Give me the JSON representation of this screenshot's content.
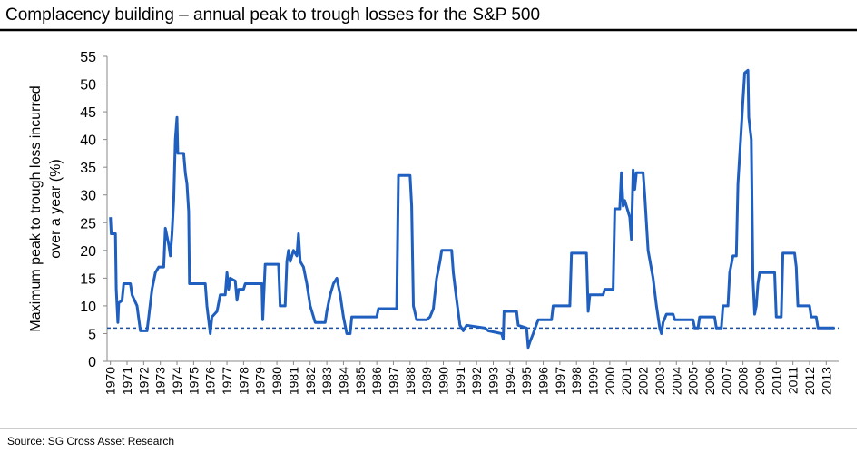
{
  "chart_data": {
    "type": "line",
    "title": "Complacency building – annual peak to trough losses for the S&P 500",
    "ylabel": [
      "Maximum peak to trough loss incurred",
      "over a year (%)"
    ],
    "source": "Source: SG Cross Asset Research",
    "color": "#1f5fbf",
    "reference_line": 6,
    "reference_color": "#1f4f9f",
    "xlim": [
      1969.8,
      2013.8
    ],
    "ylim": [
      0,
      55
    ],
    "yticks": [
      0,
      5,
      10,
      15,
      20,
      25,
      30,
      35,
      40,
      45,
      50,
      55
    ],
    "xticks": [
      1970,
      1971,
      1972,
      1973,
      1974,
      1975,
      1976,
      1977,
      1978,
      1979,
      1980,
      1981,
      1982,
      1983,
      1984,
      1985,
      1986,
      1987,
      1988,
      1989,
      1990,
      1991,
      1992,
      1993,
      1994,
      1995,
      1996,
      1997,
      1998,
      1999,
      2000,
      2001,
      2002,
      2003,
      2004,
      2005,
      2006,
      2007,
      2008,
      2009,
      2010,
      2011,
      2012,
      2013
    ],
    "x": [
      1970.0,
      1970.05,
      1970.3,
      1970.35,
      1970.45,
      1970.5,
      1970.7,
      1970.8,
      1971.2,
      1971.3,
      1971.6,
      1971.8,
      1972.2,
      1972.3,
      1972.5,
      1972.7,
      1972.9,
      1973.2,
      1973.3,
      1973.5,
      1973.6,
      1973.7,
      1973.8,
      1973.9,
      1974.0,
      1974.05,
      1974.4,
      1974.5,
      1974.6,
      1974.7,
      1974.75,
      1975.7,
      1975.8,
      1976.0,
      1976.1,
      1976.4,
      1976.6,
      1976.9,
      1977.0,
      1977.1,
      1977.2,
      1977.5,
      1977.6,
      1977.7,
      1978.0,
      1978.1,
      1979.1,
      1979.15,
      1979.3,
      1980.1,
      1980.2,
      1980.5,
      1980.6,
      1980.7,
      1980.8,
      1981.0,
      1981.2,
      1981.3,
      1981.4,
      1981.6,
      1981.8,
      1982.0,
      1982.3,
      1982.9,
      1983.0,
      1983.2,
      1983.4,
      1983.6,
      1983.8,
      1984.0,
      1984.2,
      1984.4,
      1984.5,
      1986.0,
      1986.1,
      1987.2,
      1987.3,
      1988.0,
      1988.1,
      1988.2,
      1988.4,
      1989.0,
      1989.2,
      1989.4,
      1989.6,
      1989.8,
      1989.9,
      1990.5,
      1990.6,
      1990.8,
      1991.0,
      1991.2,
      1991.4,
      1992.5,
      1992.7,
      1993.5,
      1993.6,
      1993.65,
      1994.4,
      1994.5,
      1995.0,
      1995.1,
      1995.2,
      1995.4,
      1995.7,
      1996.5,
      1996.6,
      1997.6,
      1997.7,
      1998.6,
      1998.7,
      1998.8,
      1999.6,
      1999.7,
      2000.2,
      2000.3,
      2000.6,
      2000.7,
      2000.8,
      2000.9,
      2001.2,
      2001.3,
      2001.4,
      2001.5,
      2001.6,
      2002.0,
      2002.1,
      2002.3,
      2002.6,
      2002.8,
      2003.0,
      2003.1,
      2003.2,
      2003.4,
      2003.8,
      2003.9,
      2005.0,
      2005.1,
      2005.3,
      2005.4,
      2006.3,
      2006.4,
      2006.7,
      2006.8,
      2007.1,
      2007.2,
      2007.4,
      2007.6,
      2007.7,
      2007.9,
      2008.0,
      2008.1,
      2008.3,
      2008.35,
      2008.5,
      2008.6,
      2008.7,
      2008.8,
      2008.9,
      2009.0,
      2009.9,
      2010.0,
      2010.3,
      2010.4,
      2011.1,
      2011.2,
      2011.3,
      2012.0,
      2012.1,
      2012.4,
      2012.5,
      2013.5
    ],
    "values": [
      26,
      23,
      23,
      13,
      7,
      10.5,
      11,
      14,
      14,
      12,
      10,
      5.5,
      5.5,
      8,
      13,
      16,
      17,
      17,
      24,
      21,
      19,
      23,
      29,
      40,
      44,
      37.5,
      37.5,
      34,
      32,
      27,
      14,
      14,
      10,
      5,
      8,
      9,
      12,
      12,
      16,
      13,
      15,
      14.5,
      11,
      13,
      13,
      14,
      14,
      7.5,
      17.5,
      17.5,
      10,
      10,
      18,
      20,
      18,
      20,
      19,
      23,
      18,
      17,
      14,
      10,
      7,
      7,
      9,
      12,
      14,
      15,
      12,
      8,
      5,
      5,
      8,
      8,
      9.5,
      9.5,
      33.5,
      33.5,
      28,
      10,
      7.5,
      7.5,
      8,
      9.5,
      15,
      18,
      20,
      20,
      16,
      11,
      6.5,
      5.5,
      6.5,
      6,
      5.5,
      5,
      4,
      9,
      9,
      6.5,
      6,
      2.5,
      3.5,
      5,
      7.5,
      7.5,
      10,
      10,
      19.5,
      19.5,
      9,
      12,
      12,
      13,
      13,
      27.5,
      27.5,
      34,
      28,
      29,
      26,
      22,
      34.5,
      31,
      34,
      34,
      30,
      20,
      15,
      10,
      6,
      5,
      7,
      8.5,
      8.5,
      7.5,
      7.5,
      6,
      6,
      8,
      8,
      6,
      6,
      10,
      10,
      16,
      19,
      19,
      32,
      42,
      47,
      52,
      52.5,
      44,
      40,
      15,
      8.5,
      10,
      14,
      16,
      16,
      8,
      8,
      19.5,
      19.5,
      17,
      10,
      10,
      8,
      8,
      6,
      6
    ]
  }
}
